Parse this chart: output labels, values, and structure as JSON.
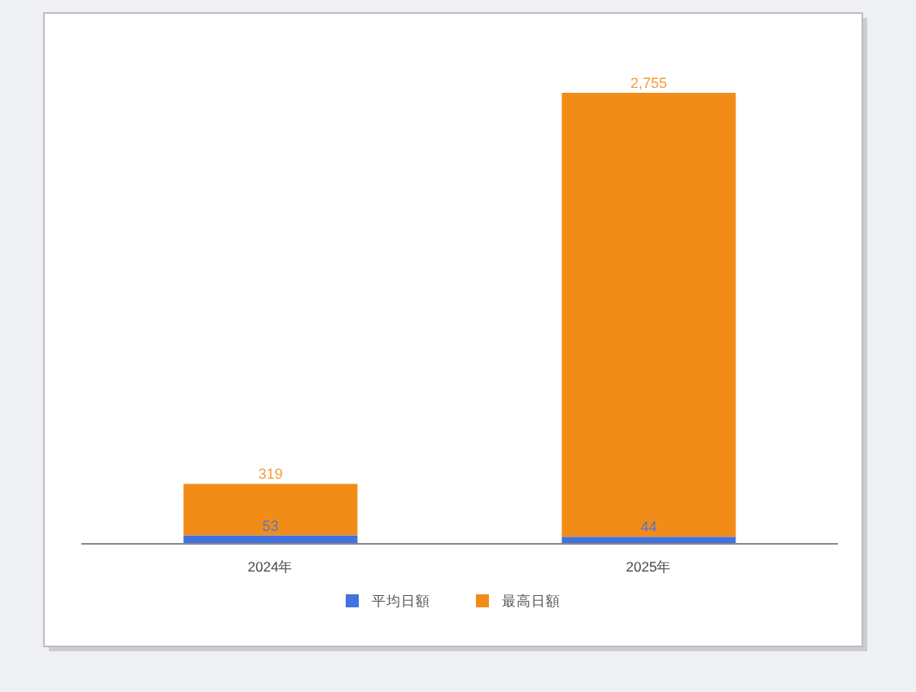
{
  "chart_data": {
    "type": "bar",
    "stacked": true,
    "categories": [
      "2024年",
      "2025年"
    ],
    "series": [
      {
        "name": "平均日額",
        "color": "#4172e0",
        "values": [
          53,
          44
        ],
        "value_labels": [
          "53",
          "44"
        ]
      },
      {
        "name": "最高日額",
        "color": "#f28c18",
        "values": [
          319,
          2755
        ],
        "value_labels": [
          "319",
          "2,755"
        ]
      }
    ],
    "legend": "bottom"
  }
}
